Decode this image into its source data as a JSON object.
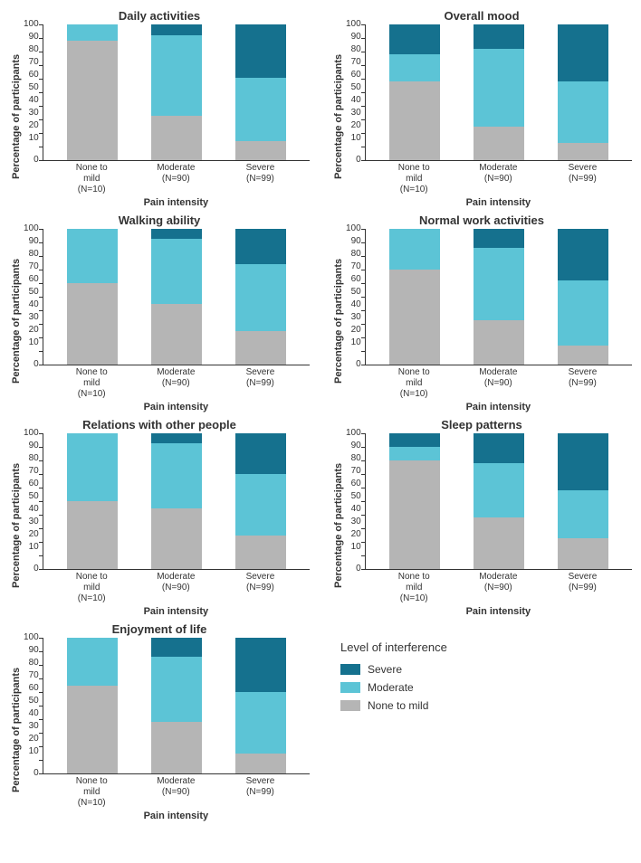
{
  "colors": {
    "severe": "#15718e",
    "moderate": "#5cc4d6",
    "none_mild": "#b5b5b5",
    "axis": "#333333",
    "background": "#ffffff"
  },
  "axis": {
    "ylabel": "Percentage of participants",
    "xlabel": "Pain intensity",
    "ylim": [
      0,
      100
    ],
    "ytick_step": 10,
    "label_fontsize": 11,
    "tick_fontsize": 10,
    "title_fontsize": 13
  },
  "categories": [
    {
      "label": "None to mild",
      "n": "(N=10)"
    },
    {
      "label": "Moderate",
      "n": "(N=90)"
    },
    {
      "label": "Severe",
      "n": "(N=99)"
    }
  ],
  "legend": {
    "title": "Level of interference",
    "items": [
      {
        "label": "Severe",
        "color_key": "severe"
      },
      {
        "label": "Moderate",
        "color_key": "moderate"
      },
      {
        "label": "None to mild",
        "color_key": "none_mild"
      }
    ]
  },
  "panels": [
    {
      "title": "Daily activities",
      "bars": [
        {
          "none_mild": 88,
          "moderate": 12,
          "severe": 0
        },
        {
          "none_mild": 33,
          "moderate": 59,
          "severe": 8
        },
        {
          "none_mild": 14,
          "moderate": 47,
          "severe": 39
        }
      ]
    },
    {
      "title": "Overall mood",
      "bars": [
        {
          "none_mild": 58,
          "moderate": 20,
          "severe": 22
        },
        {
          "none_mild": 25,
          "moderate": 57,
          "severe": 18
        },
        {
          "none_mild": 13,
          "moderate": 45,
          "severe": 42
        }
      ]
    },
    {
      "title": "Walking ability",
      "bars": [
        {
          "none_mild": 60,
          "moderate": 40,
          "severe": 0
        },
        {
          "none_mild": 45,
          "moderate": 48,
          "severe": 7
        },
        {
          "none_mild": 25,
          "moderate": 49,
          "severe": 26
        }
      ]
    },
    {
      "title": "Normal work activities",
      "bars": [
        {
          "none_mild": 70,
          "moderate": 30,
          "severe": 0
        },
        {
          "none_mild": 33,
          "moderate": 53,
          "severe": 14
        },
        {
          "none_mild": 14,
          "moderate": 48,
          "severe": 38
        }
      ]
    },
    {
      "title": "Relations with other people",
      "bars": [
        {
          "none_mild": 50,
          "moderate": 50,
          "severe": 0
        },
        {
          "none_mild": 45,
          "moderate": 48,
          "severe": 7
        },
        {
          "none_mild": 25,
          "moderate": 45,
          "severe": 30
        }
      ]
    },
    {
      "title": "Sleep patterns",
      "bars": [
        {
          "none_mild": 80,
          "moderate": 10,
          "severe": 10
        },
        {
          "none_mild": 38,
          "moderate": 40,
          "severe": 22
        },
        {
          "none_mild": 23,
          "moderate": 35,
          "severe": 42
        }
      ]
    },
    {
      "title": "Enjoyment of life",
      "bars": [
        {
          "none_mild": 65,
          "moderate": 35,
          "severe": 0
        },
        {
          "none_mild": 38,
          "moderate": 48,
          "severe": 14
        },
        {
          "none_mild": 15,
          "moderate": 45,
          "severe": 40
        }
      ]
    }
  ]
}
